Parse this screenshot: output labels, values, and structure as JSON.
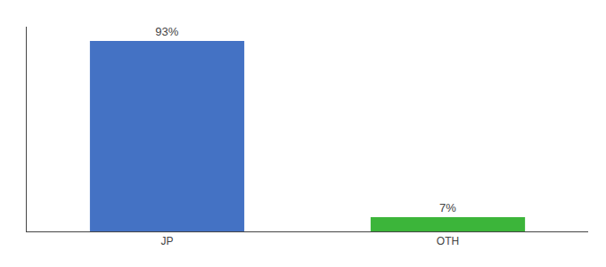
{
  "chart_data": {
    "type": "bar",
    "categories": [
      "JP",
      "OTH"
    ],
    "values": [
      93,
      7
    ],
    "value_labels": [
      "93%",
      "7%"
    ],
    "data_labels": true,
    "colors": [
      "#4472c4",
      "#3cb53a"
    ],
    "ylim": [
      0,
      100
    ],
    "grid": false,
    "tick_labels": "x"
  }
}
